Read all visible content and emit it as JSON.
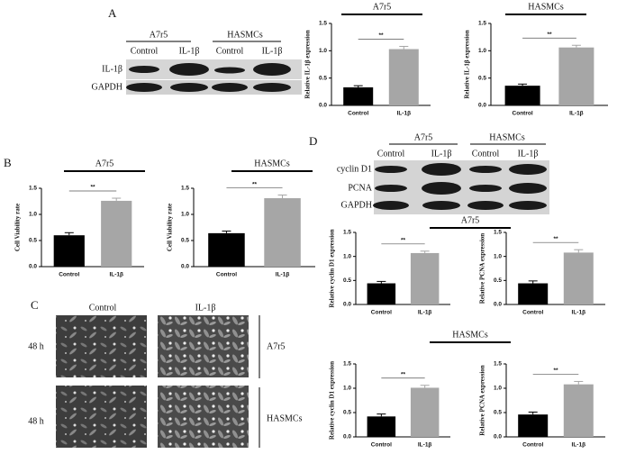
{
  "figure": {
    "panel_labels": [
      "A",
      "B",
      "C",
      "D"
    ],
    "blot_A": {
      "groups": [
        "A7r5",
        "HASMCs"
      ],
      "lanes": [
        "Control",
        "IL-1β",
        "Control",
        "IL-1β"
      ],
      "rows": [
        "IL-1β",
        "GAPDH"
      ]
    },
    "blot_D": {
      "groups": [
        "A7r5",
        "HASMCs"
      ],
      "lanes": [
        "Control",
        "IL-1β",
        "Control",
        "IL-1β"
      ],
      "rows": [
        "cyclin D1",
        "PCNA",
        "GAPDH"
      ]
    },
    "micrographs": {
      "columns": [
        "Control",
        "IL-1β"
      ],
      "rows": [
        "48 h",
        "48 h"
      ],
      "groups": [
        "A7r5",
        "HASMCs"
      ]
    }
  },
  "chart_data": [
    {
      "type": "bar",
      "title": "A7r5",
      "y_label": "Relative IL-1β expression",
      "categories": [
        "Control",
        "IL-1β"
      ],
      "values": [
        0.33,
        1.03
      ],
      "errors": [
        0.03,
        0.05
      ],
      "colors": [
        "#000000",
        "#a6a6a6"
      ],
      "ylim": [
        0,
        1.5
      ],
      "yticks": [
        {
          "value": 0,
          "label": "0.0"
        },
        {
          "value": 0.5,
          "label": "0.5"
        },
        {
          "value": 1,
          "label": "1.0"
        },
        {
          "value": 1.5,
          "label": "1.5"
        }
      ],
      "annotation": "**"
    },
    {
      "type": "bar",
      "title": "HASMCs",
      "y_label": "Relative IL-1β expression",
      "categories": [
        "Control",
        "IL-1β"
      ],
      "values": [
        0.36,
        1.06
      ],
      "errors": [
        0.03,
        0.04
      ],
      "colors": [
        "#000000",
        "#a6a6a6"
      ],
      "ylim": [
        0,
        1.5
      ],
      "yticks": [
        {
          "value": 0,
          "label": "0.0"
        },
        {
          "value": 0.5,
          "label": "0.5"
        },
        {
          "value": 1,
          "label": "1.0"
        },
        {
          "value": 1.5,
          "label": "1.5"
        }
      ],
      "annotation": "**"
    },
    {
      "type": "bar",
      "title": "A7r5",
      "y_label": "Cell Viability rate",
      "categories": [
        "Control",
        "IL-1β"
      ],
      "values": [
        0.6,
        1.26
      ],
      "errors": [
        0.05,
        0.05
      ],
      "colors": [
        "#000000",
        "#a6a6a6"
      ],
      "ylim": [
        0,
        1.5
      ],
      "yticks": [
        {
          "value": 0,
          "label": "0.0"
        },
        {
          "value": 0.5,
          "label": "0.5"
        },
        {
          "value": 1,
          "label": "1.0"
        },
        {
          "value": 1.5,
          "label": "1.5"
        }
      ],
      "annotation": "**"
    },
    {
      "type": "bar",
      "title": "HASMCs",
      "y_label": "Cell Viability rate",
      "categories": [
        "Control",
        "IL-1β"
      ],
      "values": [
        0.64,
        1.31
      ],
      "errors": [
        0.04,
        0.06
      ],
      "colors": [
        "#000000",
        "#a6a6a6"
      ],
      "ylim": [
        0,
        1.5
      ],
      "yticks": [
        {
          "value": 0,
          "label": "0.0"
        },
        {
          "value": 0.5,
          "label": "0.5"
        },
        {
          "value": 1,
          "label": "1.0"
        },
        {
          "value": 1.5,
          "label": "1.5"
        }
      ],
      "annotation": "**"
    },
    {
      "type": "bar",
      "title": "A7r5",
      "y_label": "Relative cyclin D1 expression",
      "categories": [
        "Control",
        "IL-1β"
      ],
      "values": [
        0.44,
        1.07
      ],
      "errors": [
        0.04,
        0.04
      ],
      "colors": [
        "#000000",
        "#a6a6a6"
      ],
      "ylim": [
        0,
        1.5
      ],
      "yticks": [
        {
          "value": 0,
          "label": "0.0"
        },
        {
          "value": 0.5,
          "label": "0.5"
        },
        {
          "value": 1,
          "label": "1.0"
        },
        {
          "value": 1.5,
          "label": "1.5"
        }
      ],
      "annotation": "**"
    },
    {
      "type": "bar",
      "y_label": "Relative PCNA expression",
      "categories": [
        "Control",
        "IL-1β"
      ],
      "values": [
        0.44,
        1.08
      ],
      "errors": [
        0.05,
        0.06
      ],
      "colors": [
        "#000000",
        "#a6a6a6"
      ],
      "ylim": [
        0,
        1.5
      ],
      "yticks": [
        {
          "value": 0,
          "label": "0.0"
        },
        {
          "value": 0.5,
          "label": "0.5"
        },
        {
          "value": 1,
          "label": "1.0"
        },
        {
          "value": 1.5,
          "label": "1.5"
        }
      ],
      "annotation": "**"
    },
    {
      "type": "bar",
      "title": "HASMCs",
      "y_label": "Relative cyclin D1 expression",
      "categories": [
        "Control",
        "IL-1β"
      ],
      "values": [
        0.42,
        1.01
      ],
      "errors": [
        0.05,
        0.05
      ],
      "colors": [
        "#000000",
        "#a6a6a6"
      ],
      "ylim": [
        0,
        1.5
      ],
      "yticks": [
        {
          "value": 0,
          "label": "0.0"
        },
        {
          "value": 0.5,
          "label": "0.5"
        },
        {
          "value": 1,
          "label": "1.0"
        },
        {
          "value": 1.5,
          "label": "1.5"
        }
      ],
      "annotation": "**"
    },
    {
      "type": "bar",
      "y_label": "Relative PCNA expression",
      "categories": [
        "Control",
        "IL-1β"
      ],
      "values": [
        0.46,
        1.08
      ],
      "errors": [
        0.05,
        0.06
      ],
      "colors": [
        "#000000",
        "#a6a6a6"
      ],
      "ylim": [
        0,
        1.5
      ],
      "yticks": [
        {
          "value": 0,
          "label": "0.0"
        },
        {
          "value": 0.5,
          "label": "0.5"
        },
        {
          "value": 1,
          "label": "1.0"
        },
        {
          "value": 1.5,
          "label": "1.5"
        }
      ],
      "annotation": "**"
    }
  ]
}
